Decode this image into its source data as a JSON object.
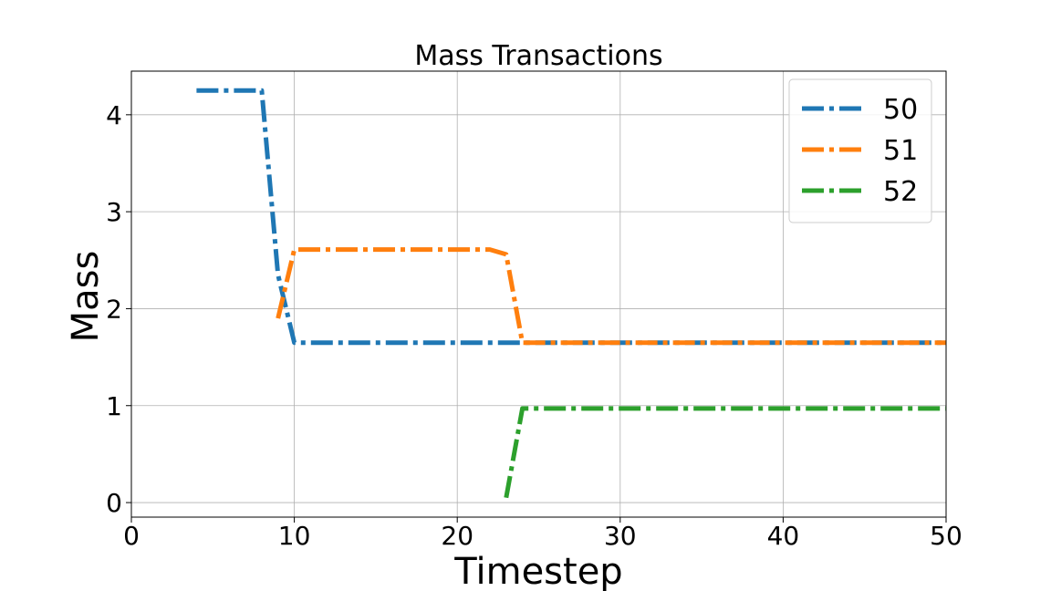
{
  "chart_data": {
    "type": "line",
    "title": "Mass Transactions",
    "xlabel": "Timestep",
    "ylabel": "Mass",
    "xlim": [
      0,
      50
    ],
    "ylim": [
      -0.15,
      4.45
    ],
    "xticks": [
      0,
      10,
      20,
      30,
      40,
      50
    ],
    "yticks": [
      0,
      1,
      2,
      3,
      4
    ],
    "grid": true,
    "legend_position": "top-right",
    "series": [
      {
        "name": "50",
        "color": "#1f77b4",
        "x": [
          4,
          5,
          6,
          7,
          8,
          9,
          10,
          11,
          12,
          13,
          14,
          15,
          16,
          17,
          18,
          19,
          20,
          21,
          22,
          23,
          24,
          25,
          26,
          27,
          28,
          29,
          30,
          31,
          32,
          33,
          34,
          35,
          36,
          37,
          38,
          39,
          40,
          41,
          42,
          43,
          44,
          45,
          46,
          47,
          48,
          49,
          50
        ],
        "y": [
          4.25,
          4.25,
          4.25,
          4.25,
          4.25,
          2.35,
          1.65,
          1.65,
          1.65,
          1.65,
          1.65,
          1.65,
          1.65,
          1.65,
          1.65,
          1.65,
          1.65,
          1.65,
          1.65,
          1.65,
          1.65,
          1.65,
          1.65,
          1.65,
          1.65,
          1.65,
          1.65,
          1.65,
          1.65,
          1.65,
          1.65,
          1.65,
          1.65,
          1.65,
          1.65,
          1.65,
          1.65,
          1.65,
          1.65,
          1.65,
          1.65,
          1.65,
          1.65,
          1.65,
          1.65,
          1.65,
          1.65
        ]
      },
      {
        "name": "51",
        "color": "#ff7f0e",
        "x": [
          9,
          10,
          11,
          12,
          13,
          14,
          15,
          16,
          17,
          18,
          19,
          20,
          21,
          22,
          23,
          24,
          25,
          26,
          27,
          28,
          29,
          30,
          31,
          32,
          33,
          34,
          35,
          36,
          37,
          38,
          39,
          40,
          41,
          42,
          43,
          44,
          45,
          46,
          47,
          48,
          49,
          50
        ],
        "y": [
          1.9,
          2.61,
          2.61,
          2.61,
          2.61,
          2.61,
          2.61,
          2.61,
          2.61,
          2.61,
          2.61,
          2.61,
          2.61,
          2.61,
          2.56,
          1.65,
          1.65,
          1.65,
          1.65,
          1.65,
          1.65,
          1.65,
          1.65,
          1.65,
          1.65,
          1.65,
          1.65,
          1.65,
          1.65,
          1.65,
          1.65,
          1.65,
          1.65,
          1.65,
          1.65,
          1.65,
          1.65,
          1.65,
          1.65,
          1.65,
          1.65,
          1.65
        ]
      },
      {
        "name": "52",
        "color": "#2ca02c",
        "x": [
          23,
          24,
          25,
          26,
          27,
          28,
          29,
          30,
          31,
          32,
          33,
          34,
          35,
          36,
          37,
          38,
          39,
          40,
          41,
          42,
          43,
          44,
          45,
          46,
          47,
          48,
          49,
          50
        ],
        "y": [
          0.05,
          0.97,
          0.97,
          0.97,
          0.97,
          0.97,
          0.97,
          0.97,
          0.97,
          0.97,
          0.97,
          0.97,
          0.97,
          0.97,
          0.97,
          0.97,
          0.97,
          0.97,
          0.97,
          0.97,
          0.97,
          0.97,
          0.97,
          0.97,
          0.97,
          0.97,
          0.97,
          0.97
        ]
      }
    ]
  }
}
